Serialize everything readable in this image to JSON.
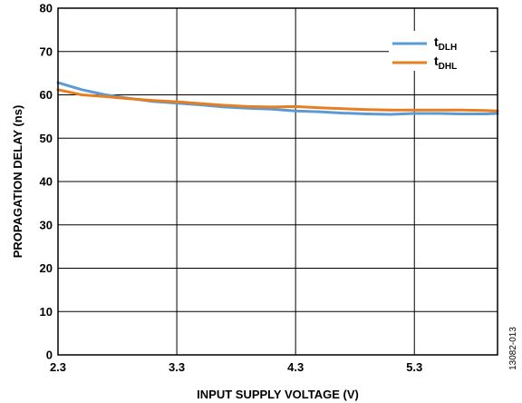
{
  "chart_data": {
    "type": "line",
    "xlabel": "INPUT SUPPLY VOLTAGE (V)",
    "ylabel": "PROPAGATION DELAY (ns)",
    "xlim": [
      2.3,
      6.0
    ],
    "ylim": [
      0,
      80
    ],
    "x_ticks": [
      2.3,
      3.3,
      4.3,
      5.3
    ],
    "x_tick_labels": [
      "2.3",
      "3.3",
      "4.3",
      "5.3"
    ],
    "y_ticks": [
      0,
      10,
      20,
      30,
      40,
      50,
      60,
      70,
      80
    ],
    "y_tick_labels": [
      "0",
      "10",
      "20",
      "30",
      "40",
      "50",
      "60",
      "70",
      "80"
    ],
    "grid": true,
    "legend_position": "top-right",
    "series": [
      {
        "name": "tDLH",
        "label_main": "t",
        "label_sub": "DLH",
        "color": "#5b9bd5",
        "x": [
          2.3,
          2.5,
          2.7,
          2.9,
          3.1,
          3.3,
          3.5,
          3.7,
          3.9,
          4.1,
          4.3,
          4.5,
          4.7,
          4.9,
          5.1,
          5.3,
          5.5,
          5.7,
          5.9,
          6.0
        ],
        "y": [
          62.8,
          61.2,
          60.0,
          59.2,
          58.5,
          58.1,
          57.7,
          57.2,
          56.9,
          56.7,
          56.3,
          56.1,
          55.8,
          55.6,
          55.5,
          55.7,
          55.7,
          55.6,
          55.6,
          55.7
        ]
      },
      {
        "name": "tDHL",
        "label_main": "t",
        "label_sub": "DHL",
        "color": "#e67e22",
        "x": [
          2.3,
          2.5,
          2.7,
          2.9,
          3.1,
          3.3,
          3.5,
          3.7,
          3.9,
          4.1,
          4.3,
          4.5,
          4.7,
          4.9,
          5.1,
          5.3,
          5.5,
          5.7,
          5.9,
          6.0
        ],
        "y": [
          61.2,
          60.0,
          59.6,
          59.1,
          58.7,
          58.4,
          58.0,
          57.6,
          57.3,
          57.2,
          57.3,
          57.0,
          56.8,
          56.6,
          56.5,
          56.5,
          56.5,
          56.5,
          56.4,
          56.3
        ]
      }
    ],
    "figure_id": "13082-013"
  }
}
